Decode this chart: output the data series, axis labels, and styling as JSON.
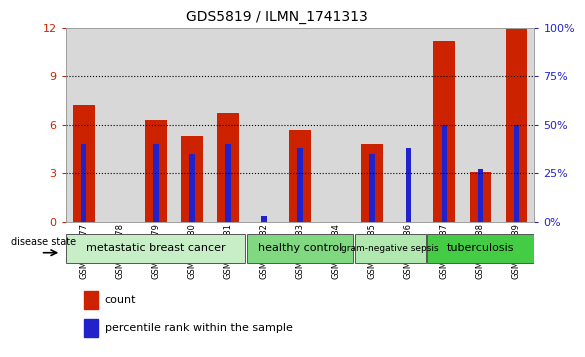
{
  "title": "GDS5819 / ILMN_1741313",
  "samples": [
    "GSM1599177",
    "GSM1599178",
    "GSM1599179",
    "GSM1599180",
    "GSM1599181",
    "GSM1599182",
    "GSM1599183",
    "GSM1599184",
    "GSM1599185",
    "GSM1599186",
    "GSM1599187",
    "GSM1599188",
    "GSM1599189"
  ],
  "counts": [
    7.2,
    0,
    6.3,
    5.3,
    6.7,
    0,
    5.7,
    0,
    4.8,
    0,
    11.2,
    3.1,
    11.9
  ],
  "percentiles_right": [
    40,
    0,
    40,
    35,
    40,
    3,
    38,
    0,
    35,
    38,
    50,
    27,
    50
  ],
  "groups": [
    {
      "label": "metastatic breast cancer",
      "start": 0,
      "end": 5,
      "color": "#c8eec8"
    },
    {
      "label": "healthy control",
      "start": 5,
      "end": 8,
      "color": "#80d880"
    },
    {
      "label": "gram-negative sepsis",
      "start": 8,
      "end": 10,
      "color": "#b0e8b0"
    },
    {
      "label": "tuberculosis",
      "start": 10,
      "end": 13,
      "color": "#44cc44"
    }
  ],
  "bar_color": "#cc2200",
  "percentile_color": "#2222cc",
  "ylim_left": [
    0,
    12
  ],
  "ylim_right": [
    0,
    100
  ],
  "yticks_left": [
    0,
    3,
    6,
    9,
    12
  ],
  "yticks_right": [
    0,
    25,
    50,
    75,
    100
  ],
  "plot_bg": "#ffffff",
  "fig_bg": "#ffffff",
  "grid_dotted_at": [
    3,
    6,
    9
  ],
  "bar_width": 0.6,
  "pct_bar_width": 0.15
}
